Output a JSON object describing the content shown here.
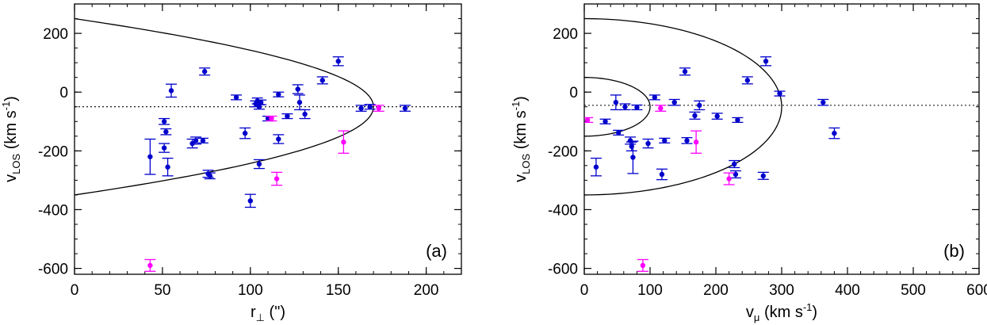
{
  "chart_data": [
    {
      "type": "scatter",
      "panel_label": "(a)",
      "xlabel": {
        "base": "r",
        "sub": "⊥",
        "rest": " (\")"
      },
      "ylabel": {
        "base": "v",
        "sub": "LOS",
        "rest": " (km s",
        "sup": "-1",
        "end": ")"
      },
      "xlim": [
        0,
        220
      ],
      "ylim": [
        -620,
        300
      ],
      "xticks": [
        0,
        50,
        100,
        150,
        200
      ],
      "yticks": [
        -600,
        -400,
        -200,
        0,
        200
      ],
      "xminor_step": 10,
      "yminor_step": 50,
      "reference_line_y": -50,
      "curves": [
        {
          "shape": "parabola",
          "vertex_x": 170,
          "vertex_y": -50,
          "y_min": -350,
          "y_max": 250
        }
      ],
      "colors": {
        "members": "#0000cc",
        "others": "#ff00ff"
      },
      "series": [
        {
          "color_key": "members",
          "points": [
            [
              43,
              -220,
              60
            ],
            [
              51,
              -100,
              10
            ],
            [
              51,
              -190,
              15
            ],
            [
              52,
              -135,
              10
            ],
            [
              53,
              -255,
              30
            ],
            [
              55,
              5,
              22
            ],
            [
              67,
              -175,
              15
            ],
            [
              69,
              -165,
              12
            ],
            [
              73,
              -165,
              8
            ],
            [
              74,
              70,
              12
            ],
            [
              76,
              -278,
              12
            ],
            [
              77,
              -285,
              10
            ],
            [
              92,
              -18,
              8
            ],
            [
              97,
              -140,
              18
            ],
            [
              100,
              -370,
              22
            ],
            [
              103,
              -40,
              10
            ],
            [
              104,
              -30,
              10
            ],
            [
              105,
              -245,
              15
            ],
            [
              105,
              -50,
              8
            ],
            [
              106,
              -35,
              8
            ],
            [
              110,
              -90,
              8
            ],
            [
              116,
              -160,
              15
            ],
            [
              116,
              -8,
              8
            ],
            [
              121,
              -82,
              8
            ],
            [
              127,
              10,
              15
            ],
            [
              128,
              -35,
              25
            ],
            [
              131,
              -75,
              15
            ],
            [
              141,
              40,
              12
            ],
            [
              150,
              105,
              15
            ],
            [
              163,
              -55,
              10
            ],
            [
              168,
              -50,
              8
            ],
            [
              188,
              -55,
              10
            ]
          ]
        },
        {
          "color_key": "others",
          "points": [
            [
              43,
              -590,
              20
            ],
            [
              112,
              -90,
              8
            ],
            [
              115,
              -295,
              22
            ],
            [
              153,
              -170,
              38
            ],
            [
              173,
              -55,
              10
            ]
          ]
        }
      ]
    },
    {
      "type": "scatter",
      "panel_label": "(b)",
      "xlabel": {
        "base": "v",
        "sub": "μ",
        "rest": " (km s",
        "sup": "-1",
        "end": ")"
      },
      "ylabel": {
        "base": "v",
        "sub": "LOS",
        "rest": " (km s",
        "sup": "-1",
        "end": ")"
      },
      "xlim": [
        0,
        600
      ],
      "ylim": [
        -620,
        300
      ],
      "xticks": [
        0,
        100,
        200,
        300,
        400,
        500,
        600
      ],
      "yticks": [
        -600,
        -400,
        -200,
        0,
        200
      ],
      "xminor_step": 20,
      "yminor_step": 50,
      "reference_line_y": -45,
      "curves": [
        {
          "shape": "half-ellipse",
          "center_y": -50,
          "radius_x": 300,
          "radius_y": 300
        },
        {
          "shape": "half-ellipse",
          "center_y": -50,
          "radius_x": 100,
          "radius_y": 100
        }
      ],
      "colors": {
        "members": "#0000cc",
        "others": "#ff00ff"
      },
      "series": [
        {
          "color_key": "members",
          "points": [
            [
              18,
              -255,
              30
            ],
            [
              32,
              -100,
              8
            ],
            [
              48,
              -35,
              25
            ],
            [
              52,
              -138,
              8
            ],
            [
              62,
              -50,
              10
            ],
            [
              70,
              -165,
              12
            ],
            [
              72,
              -185,
              15
            ],
            [
              74,
              -222,
              55
            ],
            [
              80,
              -52,
              8
            ],
            [
              97,
              -175,
              15
            ],
            [
              107,
              -18,
              8
            ],
            [
              118,
              -280,
              18
            ],
            [
              122,
              -165,
              8
            ],
            [
              137,
              -35,
              10
            ],
            [
              153,
              70,
              12
            ],
            [
              156,
              -165,
              10
            ],
            [
              168,
              -80,
              12
            ],
            [
              175,
              -45,
              15
            ],
            [
              202,
              -82,
              10
            ],
            [
              228,
              -245,
              12
            ],
            [
              230,
              -280,
              12
            ],
            [
              233,
              -95,
              8
            ],
            [
              248,
              40,
              12
            ],
            [
              272,
              -285,
              12
            ],
            [
              276,
              105,
              15
            ],
            [
              297,
              -5,
              8
            ],
            [
              363,
              -35,
              10
            ],
            [
              380,
              -140,
              18
            ]
          ]
        },
        {
          "color_key": "others",
          "points": [
            [
              5,
              -95,
              8
            ],
            [
              89,
              -590,
              20
            ],
            [
              116,
              -55,
              10
            ],
            [
              170,
              -170,
              38
            ],
            [
              220,
              -295,
              20
            ]
          ]
        }
      ]
    }
  ]
}
